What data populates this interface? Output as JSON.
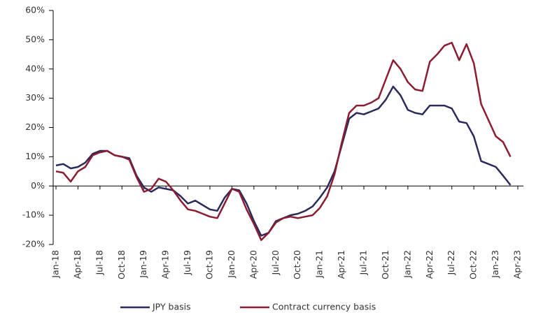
{
  "chart_data": {
    "type": "line",
    "categories": [
      "Jan-18",
      null,
      null,
      "Apr-18",
      null,
      null,
      "Jul-18",
      null,
      null,
      "Oct-18",
      null,
      null,
      "Jan-19",
      null,
      null,
      "Apr-19",
      null,
      null,
      "Jul-19",
      null,
      null,
      "Oct-19",
      null,
      null,
      "Jan-20",
      null,
      null,
      "Apr-20",
      null,
      null,
      "Jul-20",
      null,
      null,
      "Oct-20",
      null,
      null,
      "Jan-21",
      null,
      null,
      "Apr-21",
      null,
      null,
      "Jul-21",
      null,
      null,
      "Oct-21",
      null,
      null,
      "Jan-22",
      null,
      null,
      "Apr-22",
      null,
      null,
      "Jul-22",
      null,
      null,
      "Oct-22",
      null,
      null,
      "Jan-23",
      null,
      null,
      "Apr-23"
    ],
    "series": [
      {
        "name": "JPY basis",
        "color": "#2b2a5c",
        "values": [
          7,
          7.5,
          6,
          6.5,
          8,
          11,
          12,
          12,
          10.5,
          10,
          9.5,
          3.5,
          -0.5,
          -2,
          -0.5,
          -1,
          -1.5,
          -3.5,
          -6,
          -5,
          -6.5,
          -8,
          -8.5,
          -4,
          -1,
          -1.5,
          -6,
          -12,
          -17,
          -16,
          -12,
          -11,
          -10,
          -9.5,
          -8.5,
          -7,
          -4,
          -0.5,
          5,
          14,
          23,
          25,
          24.5,
          25.5,
          26.5,
          29.5,
          34,
          31,
          26,
          25,
          24.5,
          27.5,
          27.5,
          27.5,
          26.5,
          22,
          21.5,
          17,
          8.5,
          7.5,
          6.5,
          3.5,
          0.3,
          null
        ]
      },
      {
        "name": "Contract currency basis",
        "color": "#8c1c32",
        "values": [
          5,
          4.5,
          1.5,
          5,
          6.5,
          10.5,
          11.5,
          12,
          10.5,
          10,
          9,
          3,
          -2,
          -1,
          2.5,
          1.5,
          -1.5,
          -5,
          -8,
          -8.5,
          -9.5,
          -10.5,
          -11,
          -6,
          -1,
          -2,
          -8,
          -13,
          -18.5,
          -16,
          -12.5,
          -11,
          -10.5,
          -11,
          -10.5,
          -10,
          -7.5,
          -3.5,
          4,
          15,
          25,
          27.5,
          27.5,
          28.5,
          30,
          36.5,
          43,
          40,
          35.5,
          33,
          32.5,
          42.5,
          45,
          48,
          49,
          43,
          48.5,
          42,
          28,
          22.5,
          17,
          15,
          10,
          null
        ]
      }
    ],
    "ylim": [
      -20,
      60
    ],
    "yticks": [
      {
        "value": -20,
        "label": "-20%"
      },
      {
        "value": -10,
        "label": "-10%"
      },
      {
        "value": 0,
        "label": "0%"
      },
      {
        "value": 10,
        "label": "10%"
      },
      {
        "value": 20,
        "label": "20%"
      },
      {
        "value": 30,
        "label": "30%"
      },
      {
        "value": 40,
        "label": "40%"
      },
      {
        "value": 50,
        "label": "50%"
      },
      {
        "value": 60,
        "label": "60%"
      }
    ],
    "grid": false,
    "legend": "bottom"
  }
}
